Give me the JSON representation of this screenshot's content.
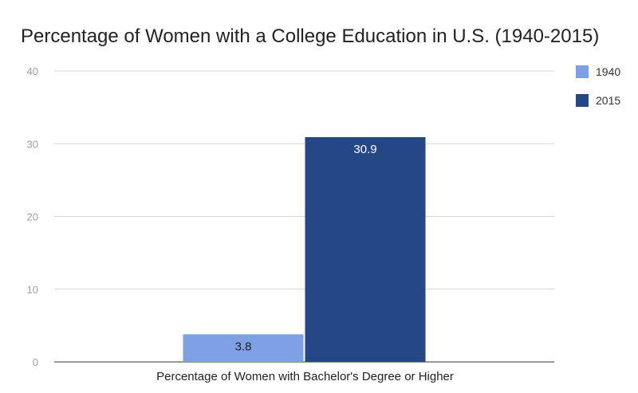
{
  "chart_data": {
    "type": "bar",
    "title": "Percentage of Women with a College Education in U.S. (1940-2015)",
    "categories": [
      "Percentage of Women with Bachelor's Degree or Higher"
    ],
    "series": [
      {
        "name": "1940",
        "values": [
          3.8
        ],
        "color": "#7ea1e5",
        "label_color": "#222222"
      },
      {
        "name": "2015",
        "values": [
          30.9
        ],
        "color": "#244785",
        "label_color": "#ffffff"
      }
    ],
    "ylim": [
      0,
      40
    ],
    "yticks": [
      0,
      10,
      20,
      30,
      40
    ],
    "xlabel": "",
    "ylabel": "",
    "grid": true,
    "legend_position": "right"
  }
}
